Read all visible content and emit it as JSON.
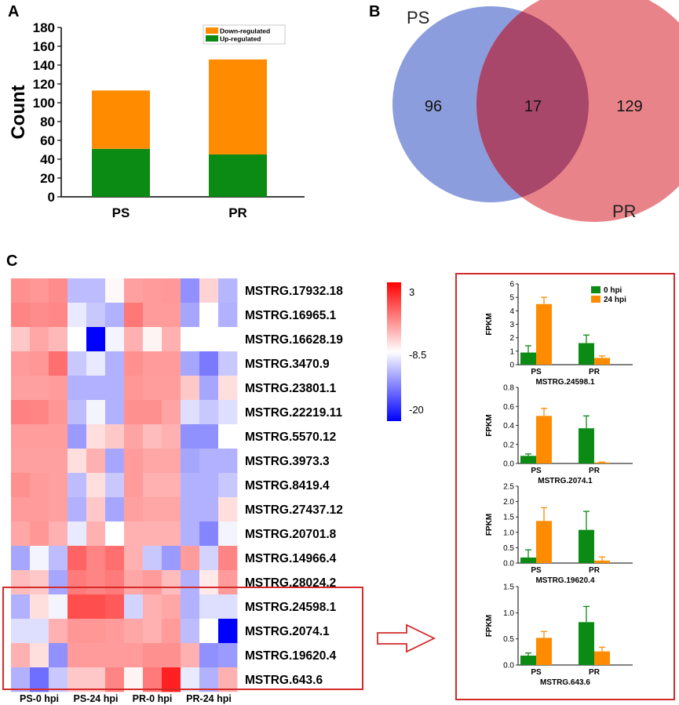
{
  "panels": {
    "a": "A",
    "b": "B",
    "c": "C"
  },
  "bar_chart": {
    "type": "bar",
    "stacked": true,
    "categories": [
      "PS",
      "PR"
    ],
    "series": [
      {
        "name": "Up-regulated",
        "values": [
          51,
          45
        ],
        "color": "#0b8a14"
      },
      {
        "name": "Down-regulated",
        "values": [
          62,
          101
        ],
        "color": "#ff8c00"
      }
    ],
    "ylabel": "Count",
    "ylim": [
      0,
      180
    ],
    "yticks": [
      "0",
      "20",
      "40",
      "60",
      "80",
      "100",
      "120",
      "140",
      "160",
      "180"
    ],
    "legend": [
      "Down-regulated",
      "Up-regulated"
    ],
    "legend_position": "top-right"
  },
  "venn": {
    "left_label": "PS",
    "right_label": "PR",
    "left_only": "96",
    "intersection": "17",
    "right_only": "129",
    "left_color": "#7f92d9",
    "right_color": "#e6797f",
    "overlap_color": "#a9476b"
  },
  "heatmap": {
    "rows": [
      "MSTRG.17932.18",
      "MSTRG.16965.1",
      "MSTRG.16628.19",
      "MSTRG.3470.9",
      "MSTRG.23801.1",
      "MSTRG.22219.11",
      "MSTRG.5570.12",
      "MSTRG.3973.3",
      "MSTRG.8419.4",
      "MSTRG.27437.12",
      "MSTRG.20701.8",
      "MSTRG.14966.4",
      "MSTRG.28024.2",
      "MSTRG.24598.1",
      "MSTRG.2074.1",
      "MSTRG.19620.4",
      "MSTRG.643.6"
    ],
    "groups": [
      "PS-0 hpi",
      "PS-24 hpi",
      "PR-0 hpi",
      "PR-24 hpi"
    ],
    "scale": {
      "min": -20,
      "mid": -8.5,
      "max": 3,
      "labels": [
        "3",
        "-8.5",
        "-20"
      ]
    },
    "values": [
      [
        -3.5,
        -3.8,
        -3.3,
        -11.5,
        -11.5,
        -8.2,
        -4.2,
        -4.0,
        -3.9,
        -13.5,
        -6.5,
        -11.8
      ],
      [
        -3.0,
        -3.3,
        -3.1,
        -9.5,
        -11.0,
        -12.0,
        -2.4,
        -4.0,
        -4.0,
        -12.5,
        -8.5,
        -12.0
      ],
      [
        -6.0,
        -4.5,
        -5.3,
        -8.5,
        -20.0,
        -9.0,
        -5.0,
        -8.0,
        -5.0,
        -8.5,
        -8.5,
        -8.5
      ],
      [
        -4.0,
        -3.8,
        -2.0,
        -11.0,
        -9.5,
        -12.0,
        -3.5,
        -4.0,
        -4.0,
        -12.5,
        -14.5,
        -11.0
      ],
      [
        -4.2,
        -4.2,
        -4.0,
        -12.0,
        -12.0,
        -12.0,
        -3.8,
        -4.1,
        -4.1,
        -6.0,
        -12.5,
        -7.0
      ],
      [
        -2.8,
        -3.0,
        -3.8,
        -11.5,
        -9.0,
        -12.0,
        -3.5,
        -3.5,
        -4.4,
        -10.0,
        -11.0,
        -10.0
      ],
      [
        -4.1,
        -4.1,
        -4.1,
        -13.0,
        -7.0,
        -6.0,
        -4.4,
        -5.5,
        -5.0,
        -13.5,
        -13.5,
        -8.5
      ],
      [
        -4.2,
        -4.2,
        -4.2,
        -7.0,
        -5.0,
        -12.5,
        -4.0,
        -4.5,
        -4.5,
        -12.5,
        -12.0,
        -12.0
      ],
      [
        -3.5,
        -4.0,
        -4.2,
        -11.5,
        -7.0,
        -11.0,
        -4.0,
        -5.0,
        -5.0,
        -12.0,
        -12.0,
        -11.0
      ],
      [
        -4.0,
        -4.0,
        -4.2,
        -12.0,
        -6.0,
        -12.5,
        -4.2,
        -4.5,
        -4.5,
        -12.0,
        -12.0,
        -7.0
      ],
      [
        -4.5,
        -3.8,
        -5.0,
        -9.5,
        -5.0,
        -8.5,
        -5.0,
        -5.0,
        -5.0,
        -12.0,
        -14.0,
        -9.0
      ],
      [
        -12.5,
        -9.0,
        -11.5,
        -1.5,
        -3.0,
        -2.0,
        -5.0,
        -11.0,
        -13.0,
        -4.0,
        -10.5,
        -3.0
      ],
      [
        -5.5,
        -6.0,
        -12.5,
        -2.5,
        -3.0,
        -2.5,
        -4.5,
        -4.0,
        -5.5,
        -12.0,
        -7.5,
        -4.0
      ],
      [
        -12.0,
        -7.0,
        -9.0,
        -0.5,
        -0.5,
        -1.0,
        -10.5,
        -5.0,
        -4.5,
        -12.0,
        -10.0,
        -10.0
      ],
      [
        -10.0,
        -10.0,
        -5.0,
        -3.8,
        -3.8,
        -4.0,
        -4.5,
        -5.0,
        -4.0,
        -11.5,
        -8.5,
        -20.0
      ],
      [
        -5.0,
        -7.0,
        -13.5,
        -4.0,
        -4.0,
        -4.0,
        -4.0,
        -3.5,
        -3.5,
        -5.0,
        -13.5,
        -13.0
      ],
      [
        -12.0,
        -15.0,
        -11.0,
        -6.0,
        -6.0,
        -3.0,
        -8.0,
        -2.5,
        1.5,
        -9.5,
        -12.0,
        -5.0
      ]
    ]
  },
  "chart_data": [
    {
      "type": "bar",
      "title": "MSTRG.24598.1",
      "ylabel": "FPKM",
      "categories": [
        "PS",
        "PR"
      ],
      "series": [
        {
          "name": "0 hpi",
          "values": [
            0.9,
            1.6
          ],
          "errors": [
            0.5,
            0.6
          ]
        },
        {
          "name": "24 hpi",
          "values": [
            4.5,
            0.5
          ],
          "errors": [
            0.5,
            0.15
          ]
        }
      ],
      "ylim": [
        0,
        6
      ],
      "yticks": [
        "0",
        "1",
        "2",
        "3",
        "4",
        "5",
        "6"
      ],
      "legend": [
        "0 hpi",
        "24 hpi"
      ]
    },
    {
      "type": "bar",
      "title": "MSTRG.2074.1",
      "ylabel": "FPKM",
      "categories": [
        "PS",
        "PR"
      ],
      "series": [
        {
          "name": "0 hpi",
          "values": [
            0.08,
            0.37
          ],
          "errors": [
            0.02,
            0.13
          ]
        },
        {
          "name": "24 hpi",
          "values": [
            0.5,
            0.01
          ],
          "errors": [
            0.08,
            0.005
          ]
        }
      ],
      "ylim": [
        0,
        0.8
      ],
      "yticks": [
        "0.0",
        "0.2",
        "0.4",
        "0.6",
        "0.8"
      ]
    },
    {
      "type": "bar",
      "title": "MSTRG.19620.4",
      "ylabel": "FPKM",
      "categories": [
        "PS",
        "PR"
      ],
      "series": [
        {
          "name": "0 hpi",
          "values": [
            0.18,
            1.08
          ],
          "errors": [
            0.25,
            0.6
          ]
        },
        {
          "name": "24 hpi",
          "values": [
            1.37,
            0.08
          ],
          "errors": [
            0.43,
            0.12
          ]
        }
      ],
      "ylim": [
        0,
        2.5
      ],
      "yticks": [
        "0.0",
        "0.5",
        "1.0",
        "1.5",
        "2.0",
        "2.5"
      ]
    },
    {
      "type": "bar",
      "title": "MSTRG.643.6",
      "ylabel": "FPKM",
      "categories": [
        "PS",
        "PR"
      ],
      "series": [
        {
          "name": "0 hpi",
          "values": [
            0.18,
            0.82
          ],
          "errors": [
            0.05,
            0.3
          ]
        },
        {
          "name": "24 hpi",
          "values": [
            0.52,
            0.26
          ],
          "errors": [
            0.12,
            0.08
          ]
        }
      ],
      "ylim": [
        0,
        1.5
      ],
      "yticks": [
        "0.0",
        "0.5",
        "1.0",
        "1.5"
      ]
    }
  ],
  "colors": {
    "green": "#0b8a14",
    "orange": "#ff8c00",
    "frame": "#d42a2a"
  }
}
